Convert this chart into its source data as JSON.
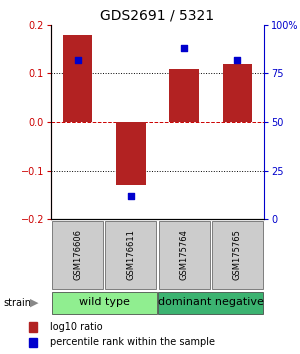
{
  "title": "GDS2691 / 5321",
  "samples": [
    "GSM176606",
    "GSM176611",
    "GSM175764",
    "GSM175765"
  ],
  "log10_ratio": [
    0.18,
    -0.13,
    0.11,
    0.12
  ],
  "percentile_rank": [
    82,
    12,
    88,
    82
  ],
  "ylim_left": [
    -0.2,
    0.2
  ],
  "ylim_right": [
    0,
    100
  ],
  "yticks_left": [
    -0.2,
    -0.1,
    0,
    0.1,
    0.2
  ],
  "yticks_right": [
    0,
    25,
    50,
    75,
    100
  ],
  "ytick_labels_right": [
    "0",
    "25",
    "50",
    "75",
    "100%"
  ],
  "bar_color": "#b22222",
  "square_color": "#0000cd",
  "bar_width": 0.55,
  "groups": [
    {
      "label": "wild type",
      "color": "#90ee90",
      "start": 0,
      "end": 2
    },
    {
      "label": "dominant negative",
      "color": "#3cb371",
      "start": 2,
      "end": 4
    }
  ],
  "legend_items": [
    {
      "color": "#b22222",
      "label": "log10 ratio"
    },
    {
      "color": "#0000cd",
      "label": "percentile rank within the sample"
    }
  ],
  "strain_label": "strain",
  "axis_color_left": "#cc0000",
  "axis_color_right": "#0000cc",
  "background_color": "#ffffff",
  "title_fontsize": 10,
  "tick_fontsize": 7,
  "sample_fontsize": 6,
  "group_fontsize": 8,
  "legend_fontsize": 7
}
